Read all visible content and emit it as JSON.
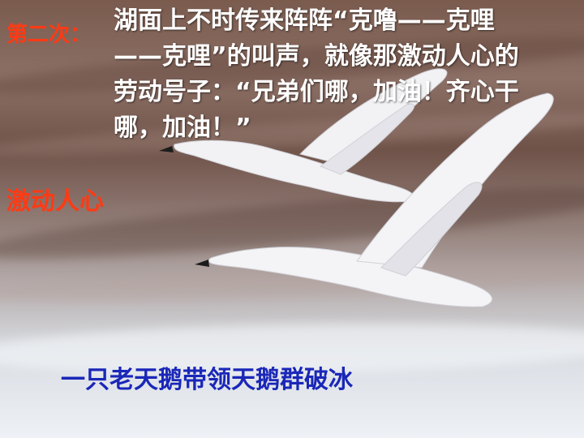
{
  "slide": {
    "order_label": "第二次：",
    "passage": "湖面上不时传来阵阵“克噜——克哩——克哩”的叫声，就像那激动人心的劳动号子：“兄弟们哪，加油！齐心干哪，加油！”",
    "heading": "激动人心",
    "caption": "一只老天鹅带领天鹅群破冰"
  },
  "colors": {
    "accent_red": "#ff3a14",
    "caption_blue": "#1a27b8",
    "text_white": "#ffffff"
  }
}
